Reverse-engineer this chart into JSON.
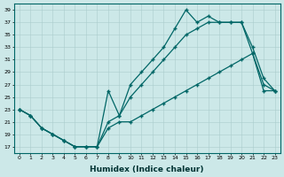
{
  "xlabel": "Humidex (Indice chaleur)",
  "background_color": "#cce8e8",
  "line_color": "#006666",
  "xlim": [
    -0.5,
    23.5
  ],
  "ylim": [
    16,
    40
  ],
  "yticks": [
    17,
    19,
    21,
    23,
    25,
    27,
    29,
    31,
    33,
    35,
    37,
    39
  ],
  "xticks": [
    0,
    1,
    2,
    3,
    4,
    5,
    6,
    7,
    8,
    9,
    10,
    11,
    12,
    13,
    14,
    15,
    16,
    17,
    18,
    19,
    20,
    21,
    22,
    23
  ],
  "line1_x": [
    0,
    1,
    2,
    3,
    4,
    5,
    6,
    7,
    8,
    9,
    10,
    11,
    12,
    13,
    14,
    15,
    16,
    17,
    18,
    19,
    20,
    21,
    22,
    23
  ],
  "line1_y": [
    23,
    22,
    20,
    19,
    18,
    17,
    17,
    17,
    26,
    22,
    27,
    29,
    31,
    33,
    36,
    39,
    37,
    38,
    37,
    37,
    37,
    32,
    27,
    26
  ],
  "line2_x": [
    0,
    1,
    2,
    3,
    4,
    5,
    6,
    7,
    8,
    9,
    10,
    11,
    12,
    13,
    14,
    15,
    16,
    17,
    18,
    19,
    20,
    21,
    22,
    23
  ],
  "line2_y": [
    23,
    22,
    20,
    19,
    18,
    17,
    17,
    17,
    21,
    22,
    25,
    27,
    29,
    31,
    33,
    35,
    36,
    37,
    37,
    37,
    37,
    33,
    28,
    26
  ],
  "line3_x": [
    0,
    1,
    2,
    3,
    4,
    5,
    6,
    7,
    8,
    9,
    10,
    11,
    12,
    13,
    14,
    15,
    16,
    17,
    18,
    19,
    20,
    21,
    22,
    23
  ],
  "line3_y": [
    23,
    22,
    20,
    19,
    18,
    17,
    17,
    17,
    20,
    21,
    21,
    22,
    23,
    24,
    25,
    26,
    27,
    28,
    29,
    30,
    31,
    32,
    26,
    26
  ]
}
